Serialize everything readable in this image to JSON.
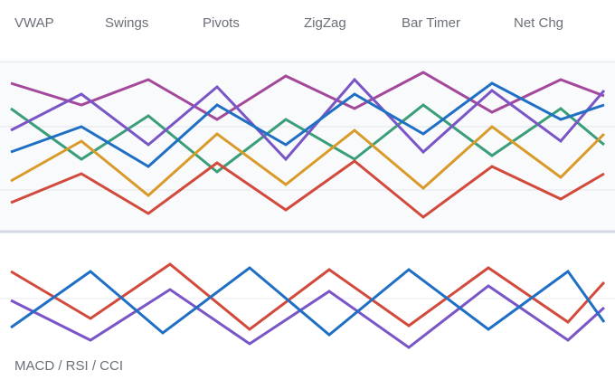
{
  "tabs": [
    "VWAP",
    "Swings",
    "Pivots",
    "ZigZag",
    "Bar Timer",
    "Net Chg"
  ],
  "lower_panel": {
    "label": "MACD / RSI / CCI"
  }
}
